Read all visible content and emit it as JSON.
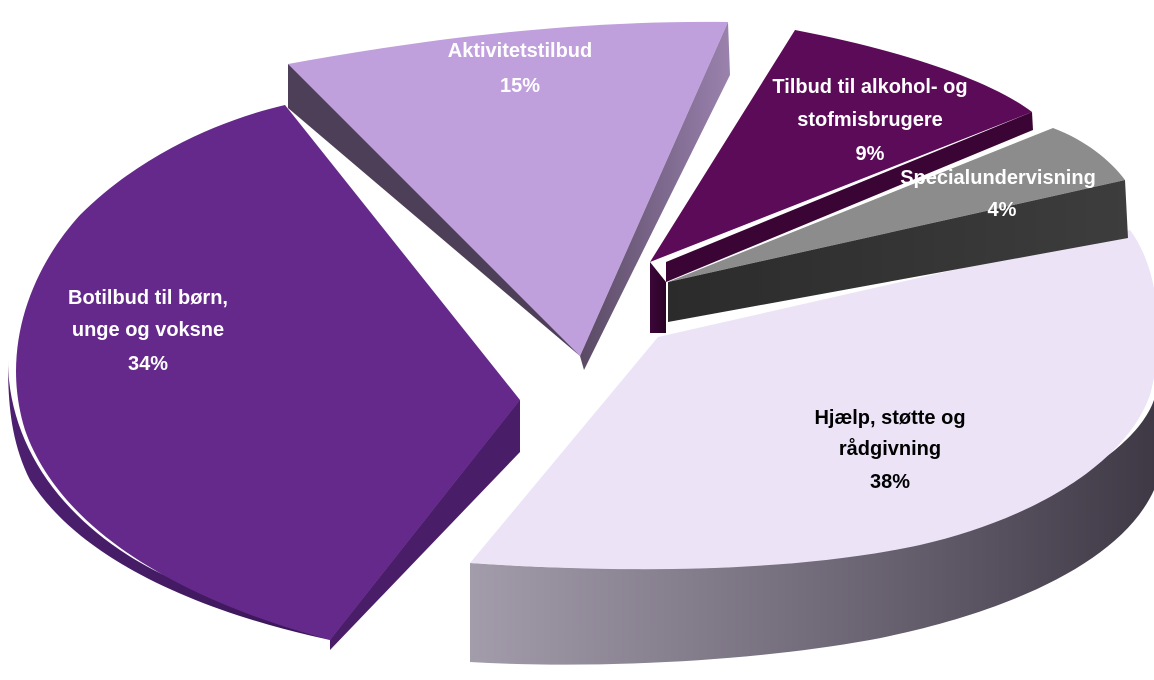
{
  "chart_data": {
    "type": "pie",
    "title": "",
    "style": "3d-exploded",
    "slices": [
      {
        "label_lines": [
          "Hjælp, støtte og",
          "rådgivning"
        ],
        "percent_label": "38%",
        "value": 38,
        "color": "#ECE3F7",
        "label_color": "#000000"
      },
      {
        "label_lines": [
          "Botilbud til børn,",
          "unge og voksne"
        ],
        "percent_label": "34%",
        "value": 34,
        "color": "#64298A",
        "label_color": "#ffffff"
      },
      {
        "label_lines": [
          "Aktivitetstilbud"
        ],
        "percent_label": "15%",
        "value": 15,
        "color": "#C09FDD",
        "label_color": "#ffffff"
      },
      {
        "label_lines": [
          "Tilbud til alkohol- og",
          "stofmisbrugere"
        ],
        "percent_label": "9%",
        "value": 9,
        "color": "#5C0B58",
        "label_color": "#ffffff"
      },
      {
        "label_lines": [
          "Specialundervisning"
        ],
        "percent_label": "4%",
        "value": 4,
        "color": "#8C8C8C",
        "label_color": "#ffffff"
      }
    ]
  }
}
